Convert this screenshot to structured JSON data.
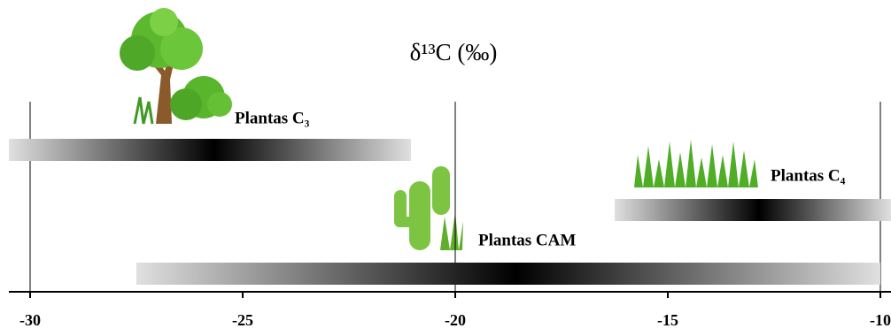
{
  "chart_data": {
    "type": "range",
    "title": "δ¹³C (‰)",
    "xlim": [
      -30.5,
      -9.75
    ],
    "xticks": [
      -30,
      -25,
      -20,
      -15,
      -10
    ],
    "xgrid": [
      -30,
      -20,
      -10
    ],
    "series": [
      {
        "name": "Plantas C₃",
        "min": -30.5,
        "max": -21.04,
        "peak": -25.67
      },
      {
        "name": "Plantas C₄",
        "min": -16.25,
        "max": -9.75,
        "peak": -12.85
      },
      {
        "name": "Plantas CAM",
        "min": -27.5,
        "max": -10,
        "peak": -18.58
      }
    ],
    "colors": {
      "end": "#e0e0e0",
      "peak": "#000000"
    }
  }
}
